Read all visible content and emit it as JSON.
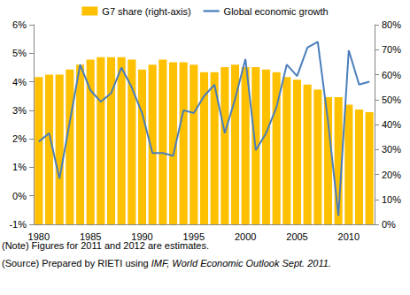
{
  "chart_data": {
    "type": "bar",
    "categories": [
      "1980",
      null,
      null,
      null,
      null,
      "1985",
      null,
      null,
      null,
      null,
      "1990",
      null,
      null,
      null,
      null,
      "1995",
      null,
      null,
      null,
      null,
      "2000",
      null,
      null,
      null,
      null,
      "2005",
      null,
      null,
      null,
      null,
      "2010",
      null,
      null
    ],
    "series": [
      {
        "name": "G7 share (right-axis)",
        "type": "bar",
        "axis": "y2",
        "color": "#FFC000",
        "values": [
          59,
          60,
          60,
          62,
          64,
          66,
          67,
          67,
          67,
          66,
          62,
          64,
          66,
          65,
          65,
          64,
          61,
          61,
          63,
          64,
          63,
          63,
          62,
          61,
          59,
          58,
          56,
          54,
          51,
          51,
          48,
          46,
          45
        ]
      },
      {
        "name": "Global economic growth",
        "type": "line",
        "color": "#4A7EBB",
        "marker": "none",
        "line_style": "solid",
        "values": [
          1.9,
          2.2,
          0.6,
          2.6,
          4.6,
          3.7,
          3.3,
          3.6,
          4.5,
          3.8,
          2.9,
          1.5,
          1.5,
          1.4,
          3.0,
          2.9,
          3.5,
          3.9,
          2.2,
          3.4,
          4.8,
          1.6,
          2.2,
          3.1,
          4.6,
          4.2,
          5.2,
          5.4,
          2.6,
          -0.7,
          5.1,
          3.9,
          4.0
        ]
      }
    ],
    "ylim": [
      -1,
      6
    ],
    "yticks": [
      {
        "value": -1,
        "label": "-1%"
      },
      {
        "value": 0,
        "label": "0%"
      },
      {
        "value": 1,
        "label": "1%"
      },
      {
        "value": 2,
        "label": "2%"
      },
      {
        "value": 3,
        "label": "3%"
      },
      {
        "value": 4,
        "label": "4%"
      },
      {
        "value": 5,
        "label": "5%"
      },
      {
        "value": 6,
        "label": "6%"
      }
    ],
    "y2lim": [
      0,
      80
    ],
    "y2ticks": [
      {
        "value": 0,
        "label": "0%"
      },
      {
        "value": 10,
        "label": "10%"
      },
      {
        "value": 20,
        "label": "20%"
      },
      {
        "value": 30,
        "label": "30%"
      },
      {
        "value": 40,
        "label": "40%"
      },
      {
        "value": 50,
        "label": "50%"
      },
      {
        "value": 60,
        "label": "60%"
      },
      {
        "value": 70,
        "label": "70%"
      },
      {
        "value": 80,
        "label": "80%"
      }
    ],
    "grid": false,
    "legend": "top",
    "notes": [
      "(Note) Figures for 2011 and 2012 are estimates."
    ],
    "source": {
      "prefix": "(Source) Prepared by RIETI using ",
      "italic": "IMF, World Economic Outlook Sept. 2011."
    }
  }
}
